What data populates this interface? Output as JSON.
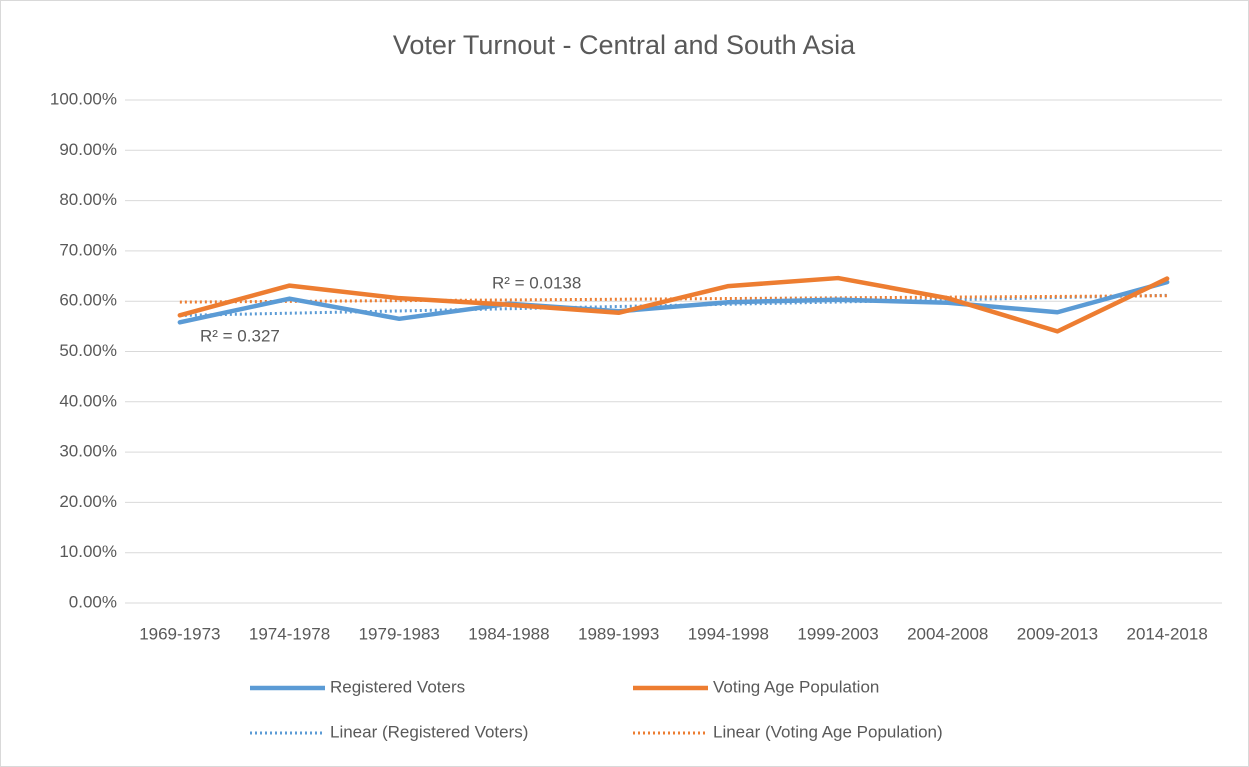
{
  "chart_data": {
    "type": "line",
    "title": "Voter Turnout - Central and South Asia",
    "categories": [
      "1969-1973",
      "1974-1978",
      "1979-1983",
      "1984-1988",
      "1989-1993",
      "1994-1998",
      "1999-2003",
      "2004-2008",
      "2009-2013",
      "2014-2018"
    ],
    "series": [
      {
        "name": "Registered Voters",
        "color": "#5b9bd5",
        "values": [
          55.8,
          60.5,
          56.5,
          59.5,
          58.0,
          59.8,
          60.3,
          59.7,
          57.8,
          63.8
        ],
        "trendline": {
          "name": "Linear (Registered Voters)",
          "r2_label": "R² = 0.327"
        }
      },
      {
        "name": "Voting Age Population",
        "color": "#ed7d31",
        "values": [
          57.2,
          63.1,
          60.6,
          59.3,
          57.7,
          63.0,
          64.6,
          60.6,
          54.0,
          64.5
        ],
        "trendline": {
          "name": "Linear (Voting Age Population)",
          "r2_label": "R² = 0.0138"
        }
      }
    ],
    "ylim": [
      0,
      100
    ],
    "yticks": [
      {
        "value": 0,
        "label": "0.00%"
      },
      {
        "value": 10,
        "label": "10.00%"
      },
      {
        "value": 20,
        "label": "20.00%"
      },
      {
        "value": 30,
        "label": "30.00%"
      },
      {
        "value": 40,
        "label": "40.00%"
      },
      {
        "value": 50,
        "label": "50.00%"
      },
      {
        "value": 60,
        "label": "60.00%"
      },
      {
        "value": 70,
        "label": "70.00%"
      },
      {
        "value": 80,
        "label": "80.00%"
      },
      {
        "value": 90,
        "label": "90.00%"
      },
      {
        "value": 100,
        "label": "100.00%"
      }
    ],
    "grid": true,
    "legend": "bottom"
  }
}
